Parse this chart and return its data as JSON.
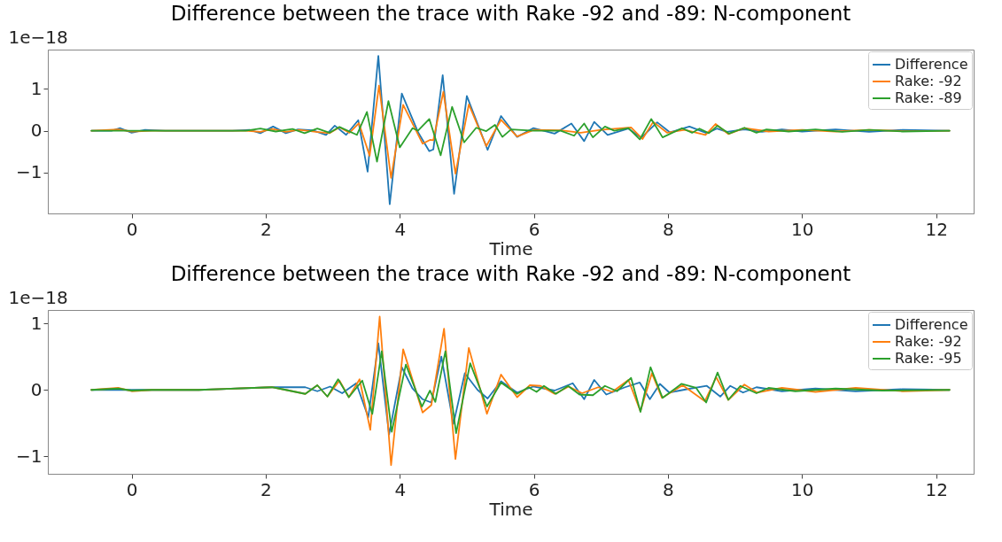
{
  "chart_data": [
    {
      "type": "line",
      "title": "Difference between the trace with Rake -92 and -89: N-component",
      "xlabel": "Time",
      "annotations": [
        "1e−18"
      ],
      "xlim": [
        -1.25,
        12.56
      ],
      "xticks": [
        0,
        2,
        4,
        6,
        8,
        10,
        12
      ],
      "ylim": [
        -1.98,
        1.94
      ],
      "yticks": [
        -1,
        0,
        1
      ],
      "grid": false,
      "legend": "top right",
      "series": [
        {
          "name": "Difference",
          "color": "#1f77b4",
          "x": [
            -0.6,
            -0.3,
            -0.17,
            0,
            0.2,
            0.5,
            1.0,
            1.5,
            1.76,
            1.92,
            2.11,
            2.3,
            2.48,
            2.7,
            2.9,
            3.03,
            3.2,
            3.38,
            3.52,
            3.68,
            3.85,
            4.03,
            4.27,
            4.44,
            4.5,
            4.64,
            4.81,
            5.0,
            5.31,
            5.51,
            5.75,
            5.99,
            6.31,
            6.56,
            6.75,
            6.9,
            7.1,
            7.41,
            7.6,
            7.84,
            8.03,
            8.32,
            8.58,
            8.73,
            8.88,
            9.14,
            9.4,
            9.7,
            10.0,
            10.5,
            11.0,
            11.5,
            12.2
          ],
          "values": [
            0,
            0,
            0.06,
            -0.05,
            0.02,
            0,
            0,
            0,
            0.02,
            -0.06,
            0.1,
            -0.06,
            0.03,
            0.01,
            -0.1,
            0.12,
            -0.1,
            0.25,
            -0.98,
            1.79,
            -1.76,
            0.89,
            -0.03,
            -0.49,
            -0.45,
            1.33,
            -1.51,
            0.83,
            -0.46,
            0.35,
            -0.15,
            0.06,
            -0.07,
            0.17,
            -0.25,
            0.21,
            -0.1,
            0.05,
            -0.17,
            0.2,
            -0.04,
            0.1,
            -0.06,
            0.05,
            -0.03,
            0.03,
            -0.03,
            0.03,
            -0.02,
            0.03,
            -0.03,
            0.02,
            0
          ]
        },
        {
          "name": "Rake: -92",
          "color": "#ff7f0e",
          "x": [
            -0.6,
            -0.2,
            0,
            0.3,
            1.0,
            1.7,
            1.92,
            2.1,
            2.3,
            2.5,
            2.75,
            2.95,
            3.1,
            3.25,
            3.39,
            3.55,
            3.69,
            3.87,
            4.05,
            4.34,
            4.45,
            4.5,
            4.65,
            4.83,
            5.03,
            5.29,
            5.51,
            5.75,
            6.0,
            6.4,
            6.7,
            7.0,
            7.45,
            7.62,
            7.78,
            7.99,
            8.25,
            8.56,
            8.71,
            8.9,
            9.14,
            9.5,
            10.0,
            10.5,
            11.0,
            11.5,
            12.2
          ],
          "values": [
            0,
            0.03,
            -0.02,
            0,
            0,
            0,
            -0.03,
            0.04,
            -0.03,
            0.02,
            -0.03,
            -0.06,
            0.08,
            -0.05,
            0.18,
            -0.6,
            1.08,
            -1.13,
            0.62,
            -0.31,
            -0.22,
            -0.23,
            0.93,
            -1.03,
            0.63,
            -0.37,
            0.26,
            -0.14,
            0.02,
            0.01,
            -0.05,
            0.02,
            0.08,
            -0.2,
            0.21,
            -0.05,
            0.02,
            -0.1,
            0.16,
            -0.08,
            0.06,
            -0.02,
            0.02,
            -0.02,
            0.02,
            -0.01,
            0
          ]
        },
        {
          "name": "Rake: -89",
          "color": "#2ca02c",
          "x": [
            -0.6,
            0,
            1.0,
            1.7,
            1.92,
            2.15,
            2.4,
            2.58,
            2.77,
            2.95,
            3.1,
            3.36,
            3.51,
            3.66,
            3.83,
            4.0,
            4.19,
            4.27,
            4.44,
            4.61,
            4.78,
            4.96,
            5.14,
            5.29,
            5.42,
            5.53,
            5.66,
            6.0,
            6.4,
            6.6,
            6.75,
            6.88,
            7.06,
            7.2,
            7.41,
            7.58,
            7.75,
            7.92,
            8.21,
            8.36,
            8.47,
            8.61,
            8.74,
            8.91,
            9.14,
            9.32,
            9.47,
            9.8,
            10.2,
            10.6,
            11.0,
            11.5,
            12.2
          ],
          "values": [
            0,
            0,
            0,
            0,
            0.05,
            -0.02,
            0.04,
            -0.06,
            0.05,
            -0.05,
            0.09,
            -0.1,
            0.45,
            -0.74,
            0.71,
            -0.4,
            0.06,
            0,
            0.28,
            -0.59,
            0.57,
            -0.28,
            0.07,
            -0.01,
            0.14,
            -0.15,
            0.03,
            0,
            0,
            -0.12,
            0.17,
            -0.16,
            0.1,
            0,
            0.06,
            -0.21,
            0.28,
            -0.16,
            0.06,
            -0.05,
            0.05,
            -0.06,
            0.12,
            -0.07,
            0.07,
            -0.05,
            0.03,
            -0.02,
            0.03,
            -0.03,
            0.02,
            -0.02,
            0
          ]
        }
      ]
    },
    {
      "type": "line",
      "title": "Difference between the trace with Rake -92 and -89: N-component",
      "xlabel": "Time",
      "annotations": [
        "1e−18"
      ],
      "xlim": [
        -1.25,
        12.56
      ],
      "xticks": [
        0,
        2,
        4,
        6,
        8,
        10,
        12
      ],
      "ylim": [
        -1.26,
        1.2
      ],
      "yticks": [
        -1,
        0,
        1
      ],
      "grid": false,
      "legend": "top right",
      "series": [
        {
          "name": "Difference",
          "color": "#1f77b4",
          "x": [
            -0.6,
            0,
            1.0,
            2.09,
            2.59,
            2.77,
            2.96,
            3.14,
            3.35,
            3.53,
            3.68,
            3.84,
            4.03,
            4.19,
            4.34,
            4.47,
            4.62,
            4.8,
            4.97,
            5.16,
            5.31,
            5.51,
            5.75,
            5.99,
            6.31,
            6.58,
            6.75,
            6.9,
            7.08,
            7.36,
            7.58,
            7.73,
            7.88,
            8.02,
            8.28,
            8.58,
            8.78,
            8.93,
            9.12,
            9.32,
            9.7,
            10.2,
            10.8,
            11.5,
            12.2
          ],
          "values": [
            0,
            0,
            0,
            0.04,
            0.04,
            -0.02,
            0.05,
            -0.05,
            0.1,
            -0.41,
            0.7,
            -0.67,
            0.34,
            0.02,
            -0.14,
            -0.19,
            0.5,
            -0.51,
            0.25,
            0,
            -0.13,
            0.13,
            -0.04,
            0.05,
            -0.01,
            0.1,
            -0.14,
            0.15,
            -0.07,
            0.04,
            0.11,
            -0.14,
            0.09,
            -0.04,
            0.01,
            0.06,
            -0.1,
            0.06,
            -0.04,
            0.04,
            -0.02,
            0.02,
            -0.02,
            0.01,
            0
          ]
        },
        {
          "name": "Rake: -92",
          "color": "#ff7f0e",
          "x": [
            -0.6,
            -0.2,
            0,
            0.3,
            1.0,
            2.09,
            2.3,
            2.59,
            2.77,
            2.92,
            3.1,
            3.24,
            3.4,
            3.56,
            3.7,
            3.87,
            4.05,
            4.34,
            4.47,
            4.66,
            4.83,
            5.03,
            5.3,
            5.51,
            5.75,
            5.94,
            6.1,
            6.31,
            6.52,
            6.72,
            6.96,
            7.17,
            7.41,
            7.59,
            7.76,
            7.91,
            8.22,
            8.55,
            8.72,
            8.9,
            9.14,
            9.33,
            9.7,
            10.2,
            10.8,
            11.5,
            12.2
          ],
          "values": [
            0,
            0.03,
            -0.02,
            0,
            0,
            0.04,
            0,
            -0.06,
            0.07,
            -0.1,
            0.14,
            -0.11,
            0.16,
            -0.6,
            1.1,
            -1.13,
            0.61,
            -0.34,
            -0.23,
            0.92,
            -1.04,
            0.63,
            -0.36,
            0.23,
            -0.11,
            0.07,
            0.06,
            -0.06,
            0.05,
            -0.05,
            0.04,
            -0.03,
            0.15,
            -0.32,
            0.25,
            -0.12,
            0.07,
            -0.17,
            0.19,
            -0.15,
            0.08,
            -0.04,
            0.03,
            -0.03,
            0.03,
            -0.02,
            0
          ]
        },
        {
          "name": "Rake: -95",
          "color": "#2ca02c",
          "x": [
            -0.6,
            -0.2,
            0,
            0.3,
            1.0,
            2.09,
            2.3,
            2.59,
            2.77,
            2.92,
            3.08,
            3.24,
            3.44,
            3.59,
            3.73,
            3.88,
            4.09,
            4.33,
            4.45,
            4.53,
            4.68,
            4.84,
            5.05,
            5.3,
            5.51,
            5.75,
            5.92,
            6.04,
            6.15,
            6.33,
            6.51,
            6.68,
            6.88,
            7.06,
            7.24,
            7.45,
            7.59,
            7.74,
            7.92,
            8.2,
            8.42,
            8.57,
            8.74,
            8.9,
            9.08,
            9.32,
            9.5,
            9.9,
            10.5,
            11.2,
            12.2
          ],
          "values": [
            0,
            0.02,
            -0.01,
            0,
            0,
            0.04,
            0,
            -0.06,
            0.07,
            -0.1,
            0.16,
            -0.11,
            0.14,
            -0.36,
            0.58,
            -0.63,
            0.38,
            -0.25,
            -0.01,
            -0.18,
            0.58,
            -0.65,
            0.4,
            -0.25,
            0.11,
            -0.06,
            0.04,
            -0.03,
            0.06,
            -0.06,
            0.06,
            -0.07,
            -0.08,
            0.06,
            -0.02,
            0.18,
            -0.33,
            0.34,
            -0.12,
            0.09,
            0.03,
            -0.19,
            0.26,
            -0.15,
            0.06,
            -0.05,
            0.03,
            -0.02,
            0.02,
            -0.01,
            0
          ]
        }
      ]
    }
  ]
}
